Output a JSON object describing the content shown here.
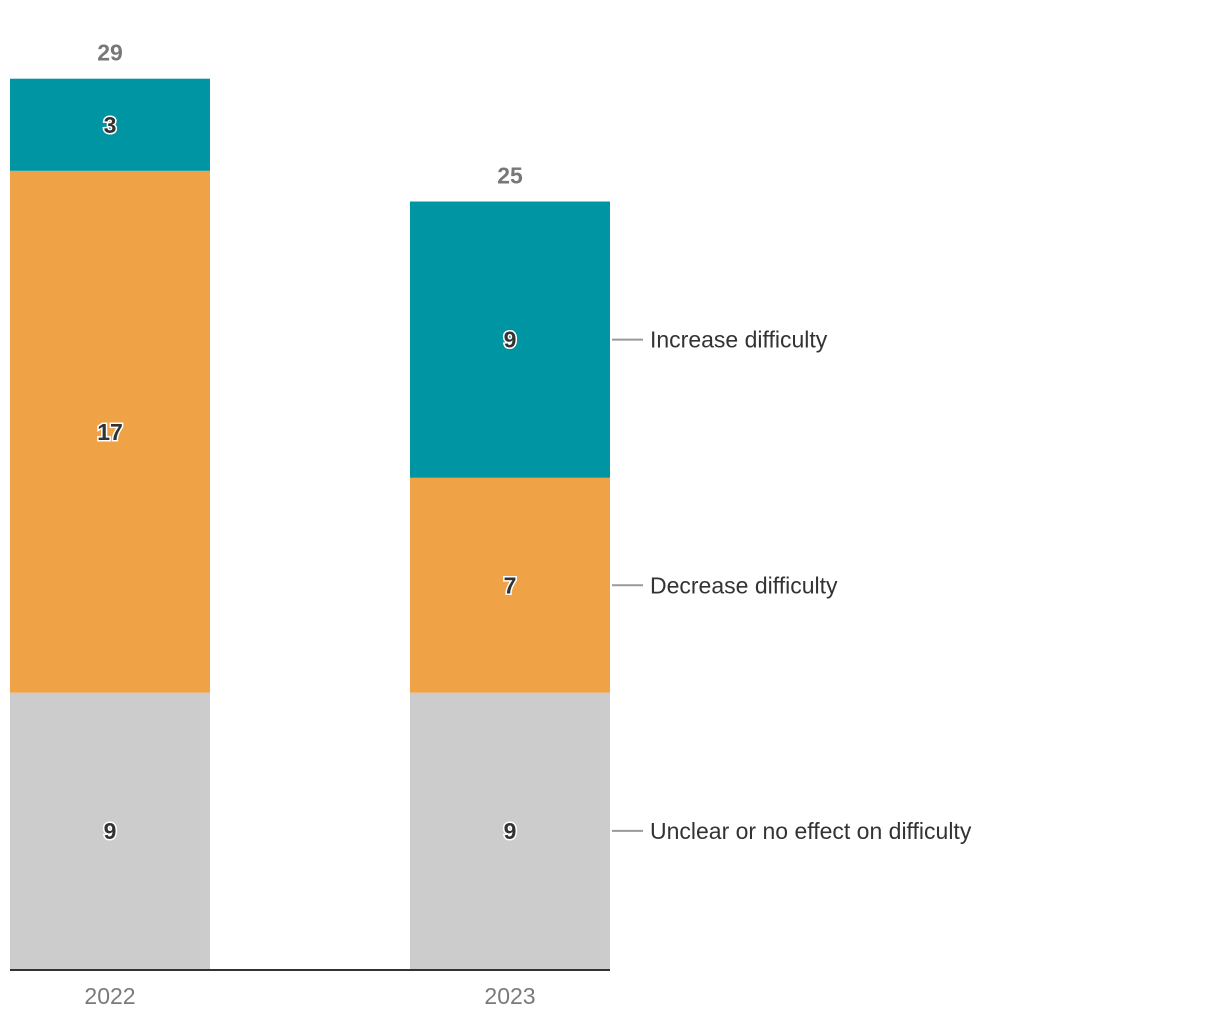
{
  "chart_data": {
    "type": "bar",
    "stacked": true,
    "categories": [
      "2022",
      "2023"
    ],
    "series": [
      {
        "name": "Unclear or no effect on difficulty",
        "values": [
          9,
          9
        ],
        "color": "#cccccc"
      },
      {
        "name": "Decrease difficulty",
        "values": [
          17,
          7
        ],
        "color": "#f0a346"
      },
      {
        "name": "Increase difficulty",
        "values": [
          3,
          9
        ],
        "color": "#0095a3"
      }
    ],
    "totals": [
      29,
      25
    ],
    "title": "",
    "xlabel": "",
    "ylabel": "",
    "ylim": [
      0,
      29
    ],
    "grid": false,
    "legend": "right, inline labels"
  }
}
